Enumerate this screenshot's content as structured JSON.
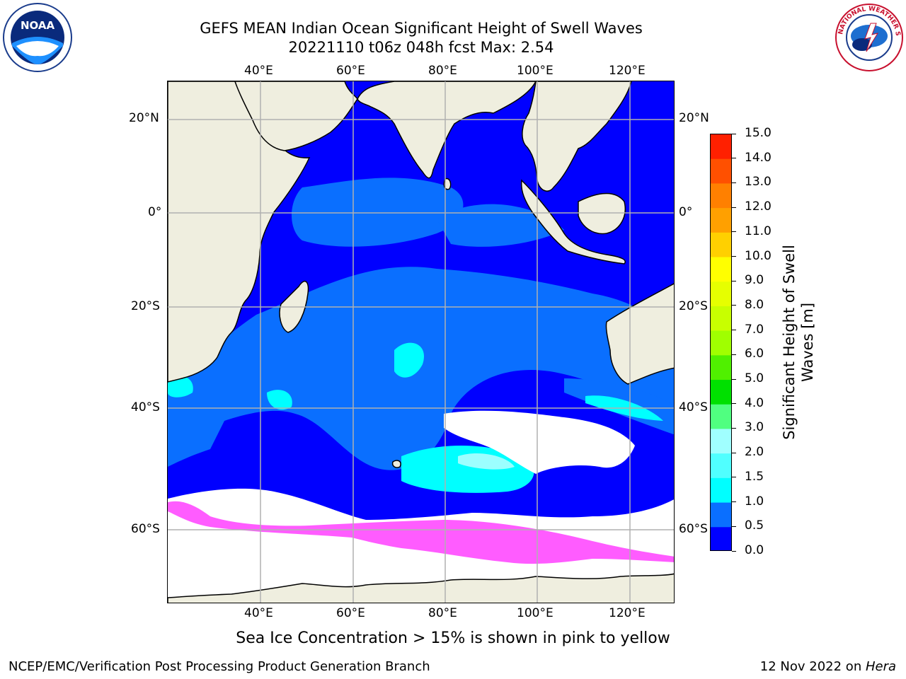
{
  "title": {
    "line1": "GEFS MEAN Indian Ocean Significant Height of Swell Waves",
    "line2": "20221110 t06z 048h fcst   Max: 2.54"
  },
  "logos": {
    "noaa": {
      "text": "NOAA"
    },
    "nws": {
      "text": "NATIONAL WEATHER SERVICE"
    }
  },
  "map": {
    "lon_ticks": [
      "40°E",
      "60°E",
      "80°E",
      "100°E",
      "120°E"
    ],
    "lat_ticks_left": [
      "20°N",
      "0°",
      "20°S",
      "40°S",
      "60°S"
    ],
    "lat_ticks_right": [
      "20°N",
      "0°",
      "20°S",
      "40°S",
      "60°S"
    ],
    "colors": {
      "land": "#efeedf",
      "ocean_low": "#0000ff",
      "ocean_mid": "#0a6fff",
      "ocean_high": "#00ffff",
      "ocean_peak": "#9cffff",
      "no_swell": "#ffffff",
      "sea_ice": "#ff40ff",
      "grid": "#b0b0b0"
    }
  },
  "colorbar": {
    "label_line1": "Significant Height of Swell",
    "label_line2": "Waves [m]",
    "ticks": [
      "15.0",
      "14.0",
      "13.0",
      "12.0",
      "11.0",
      "10.0",
      "9.0",
      "8.0",
      "7.0",
      "6.0",
      "5.0",
      "4.0",
      "3.0",
      "2.0",
      "1.5",
      "1.0",
      "0.5",
      "0.0"
    ],
    "colors": [
      "#ff0000",
      "#ff2000",
      "#ff5000",
      "#ff8000",
      "#ffa000",
      "#ffd000",
      "#ffff00",
      "#e6ff00",
      "#c8ff00",
      "#a0ff00",
      "#50f000",
      "#00e000",
      "#50ff80",
      "#a0ffff",
      "#50ffff",
      "#00ffff",
      "#0a6fff",
      "#0000ff"
    ]
  },
  "caption": "Sea Ice Concentration > 15% is shown in pink to yellow",
  "footer": {
    "left": "NCEP/EMC/Verification Post Processing Product Generation Branch",
    "right_prefix": "12 Nov 2022 on ",
    "right_italic": "Hera"
  }
}
